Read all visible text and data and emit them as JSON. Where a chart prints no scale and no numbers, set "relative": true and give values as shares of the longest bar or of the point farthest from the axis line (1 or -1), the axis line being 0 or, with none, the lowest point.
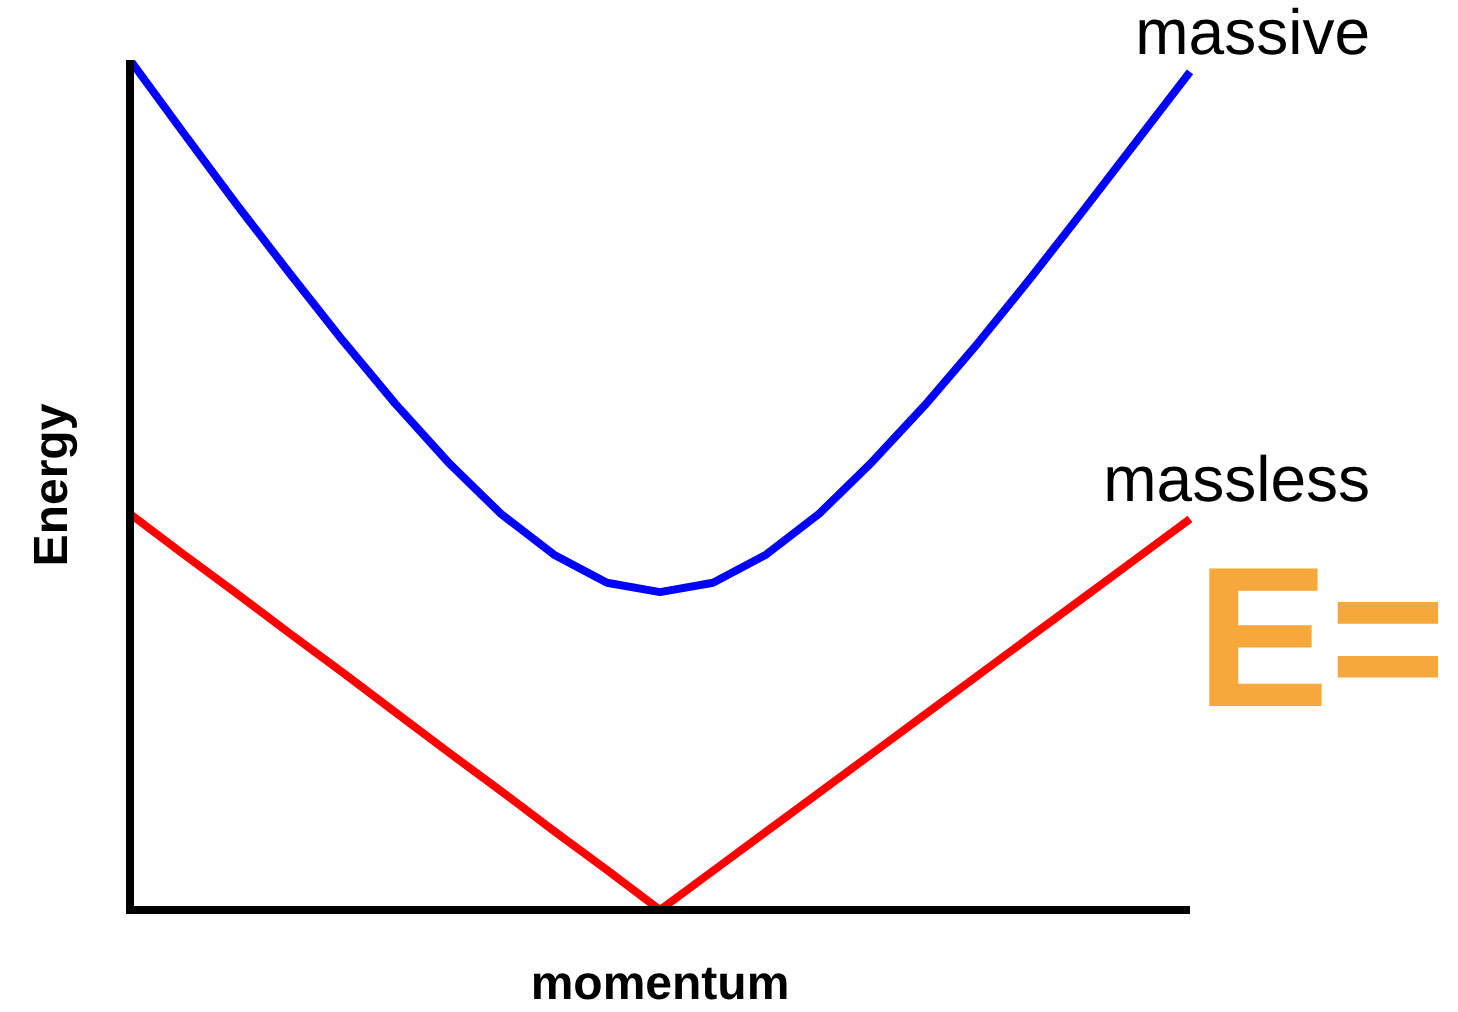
{
  "chart_data": {
    "type": "line",
    "relative": true,
    "xlabel": "momentum",
    "ylabel": "Energy",
    "legend": false,
    "grid": false,
    "marker": "none",
    "line_style": "solid",
    "categories": [
      null,
      null,
      null,
      null,
      null,
      null,
      null,
      null,
      null,
      null,
      null,
      null,
      null,
      null,
      null,
      null,
      null,
      null,
      null,
      null,
      null
    ],
    "series": [
      {
        "name": "massive",
        "color": "#0000ff",
        "values": [
          1.0,
          0.915,
          0.831,
          0.75,
          0.671,
          0.596,
          0.527,
          0.466,
          0.418,
          0.385,
          0.374,
          0.385,
          0.418,
          0.466,
          0.527,
          0.594,
          0.667,
          0.744,
          0.824,
          0.905,
          0.986
        ]
      },
      {
        "name": "massless",
        "color": "#ff0000",
        "values": [
          0.466,
          0.419,
          0.373,
          0.326,
          0.28,
          0.233,
          0.186,
          0.14,
          0.093,
          0.047,
          0,
          0.046,
          0.092,
          0.138,
          0.184,
          0.23,
          0.276,
          0.322,
          0.368,
          0.414,
          0.46
        ]
      }
    ],
    "annotations": [
      "E="
    ]
  }
}
